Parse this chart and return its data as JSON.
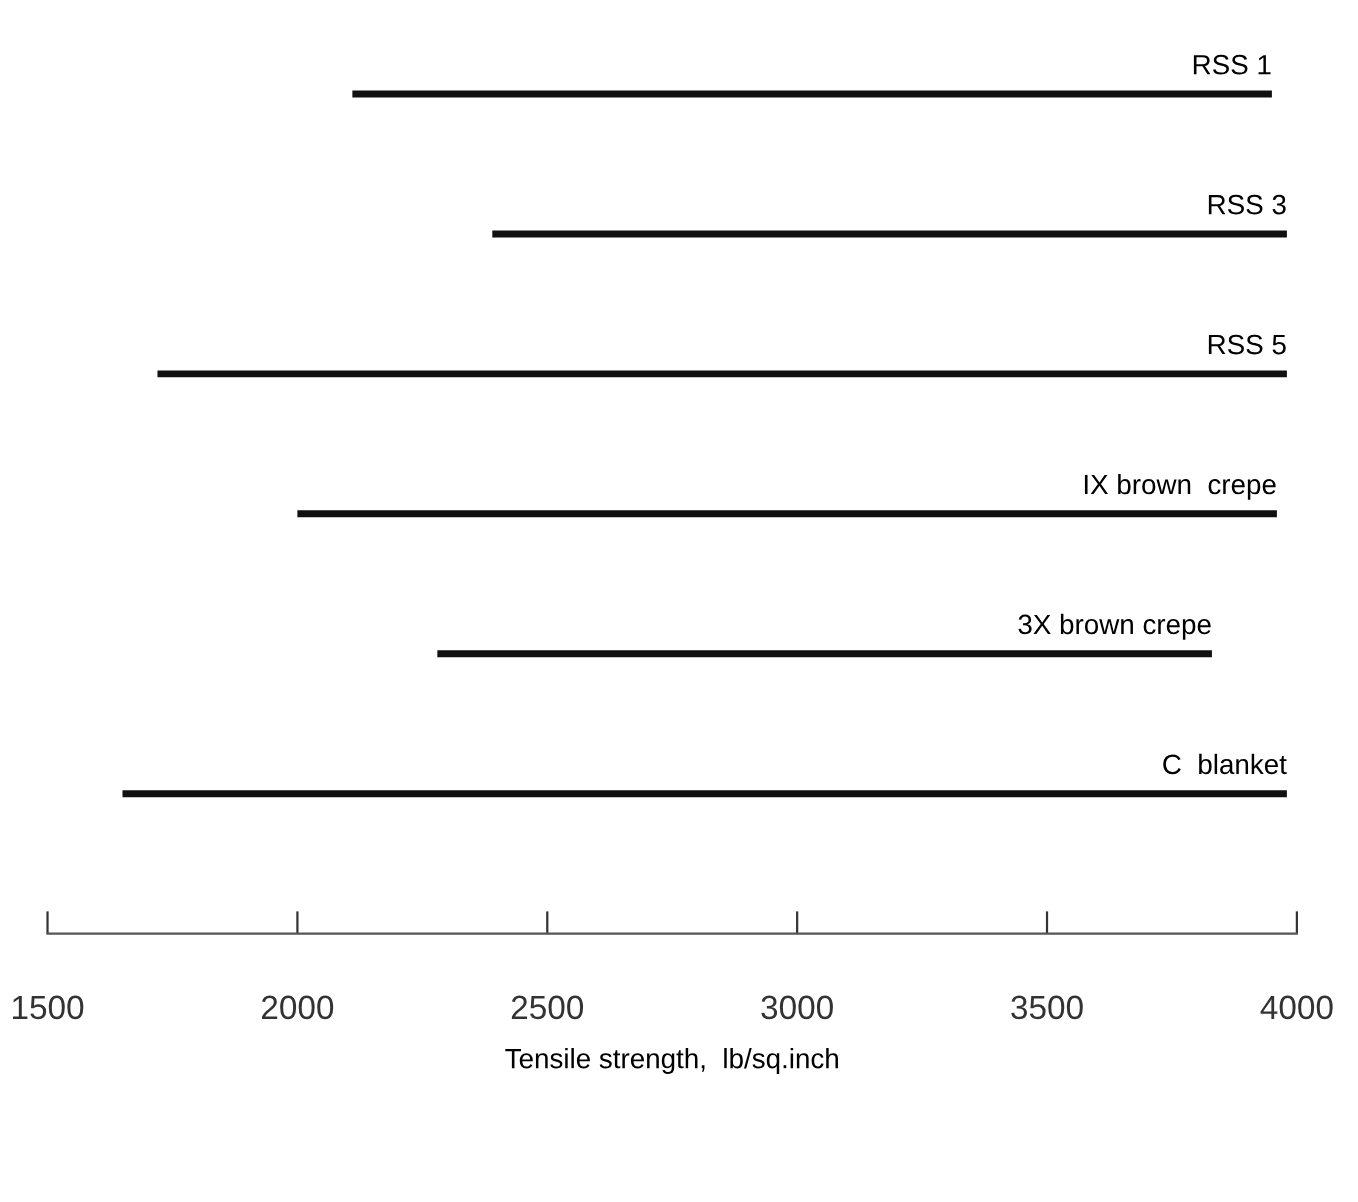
{
  "chart_data": {
    "type": "bar",
    "orientation": "horizontal",
    "xlabel": "Tensile strength,  lb/sq.inch",
    "categories": [
      "RSS 1",
      "RSS 3",
      "RSS 5",
      "IX brown  crepe",
      "3X brown crepe",
      "C  blanket"
    ],
    "base": [
      2110,
      2390,
      1720,
      2000,
      2280,
      1650
    ],
    "values": [
      1840,
      1590,
      2260,
      1960,
      1550,
      2330
    ],
    "color": "#111111",
    "xlim": [
      1500,
      4000
    ],
    "xticks": [
      1500,
      2000,
      2500,
      3000,
      3500,
      4000
    ],
    "tick_labels": "x",
    "grid": false
  }
}
